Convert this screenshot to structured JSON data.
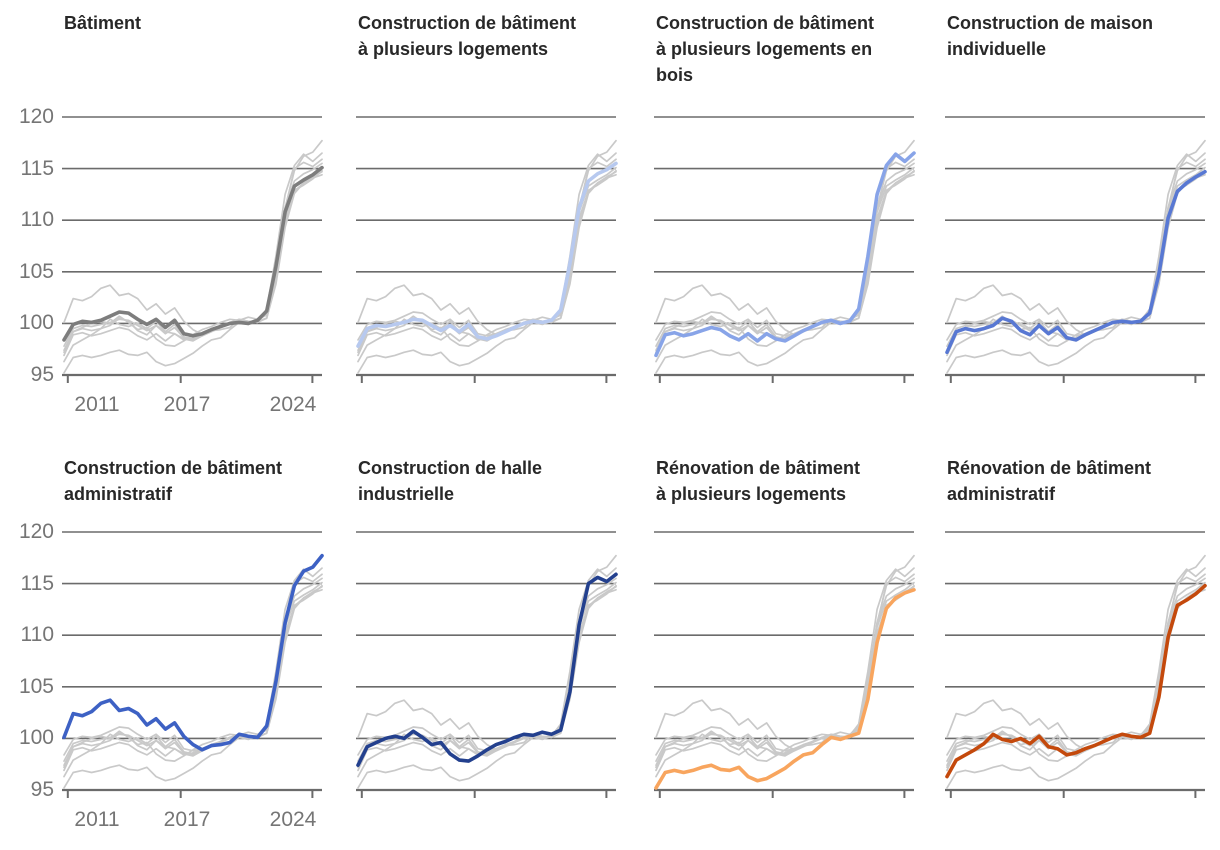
{
  "page": {
    "background": "#ffffff"
  },
  "axis": {
    "y_tick_labels": [
      "120",
      "115",
      "110",
      "105",
      "100",
      "95"
    ],
    "x_tick_labels": [
      "2011",
      "2017",
      "2024"
    ],
    "label_color": "#757575"
  },
  "chart_data": {
    "type": "line",
    "layout": "small-multiples-2x4",
    "grid": true,
    "grid_color": "#6b6b6b",
    "background_series_color": "#c9c9c9",
    "ylim": [
      95,
      120
    ],
    "y_ticks": [
      95,
      100,
      105,
      110,
      115,
      120
    ],
    "x_ticks": [
      2011,
      2017,
      2024
    ],
    "x": [
      2010.75,
      2011.25,
      2011.75,
      2012.25,
      2012.75,
      2013.25,
      2013.75,
      2014.25,
      2014.75,
      2015.25,
      2015.75,
      2016.25,
      2016.75,
      2017.25,
      2017.75,
      2018.25,
      2018.75,
      2019.25,
      2019.75,
      2020.25,
      2020.75,
      2021.25,
      2021.75,
      2022.25,
      2022.75,
      2023.25,
      2023.75,
      2024.25,
      2024.75
    ],
    "series": [
      {
        "name": "Bâtiment",
        "color": "#7d7d7d",
        "values": [
          98.4,
          99.9,
          100.2,
          100.1,
          100.3,
          100.7,
          101.1,
          101.0,
          100.4,
          99.9,
          100.4,
          99.6,
          100.3,
          99.0,
          98.8,
          99.0,
          99.4,
          99.7,
          100.0,
          100.1,
          100.0,
          100.3,
          101.2,
          105.5,
          110.8,
          113.3,
          113.9,
          114.4,
          115.1
        ]
      },
      {
        "name": "Construction de bâtiment à plusieurs logements",
        "color": "#b7c9ef",
        "values": [
          97.8,
          99.5,
          99.8,
          99.7,
          99.9,
          100.1,
          100.4,
          100.3,
          99.8,
          99.3,
          99.8,
          99.2,
          99.9,
          98.7,
          98.5,
          98.8,
          99.2,
          99.6,
          100.0,
          100.2,
          100.1,
          100.3,
          101.3,
          105.8,
          111.2,
          113.8,
          114.5,
          114.9,
          115.5
        ]
      },
      {
        "name": "Construction de bâtiment à plusieurs logements en bois",
        "color": "#88a4e8",
        "values": [
          96.9,
          98.9,
          99.1,
          98.8,
          99.0,
          99.3,
          99.6,
          99.4,
          98.8,
          98.4,
          99.0,
          98.3,
          99.0,
          98.5,
          98.3,
          98.8,
          99.3,
          99.7,
          100.1,
          100.3,
          100.0,
          100.2,
          101.4,
          106.5,
          112.5,
          115.3,
          116.4,
          115.7,
          116.5
        ]
      },
      {
        "name": "Construction de maison individuelle",
        "color": "#5878d3",
        "values": [
          97.2,
          99.2,
          99.5,
          99.3,
          99.5,
          99.8,
          100.5,
          100.2,
          99.3,
          98.9,
          99.8,
          99.0,
          99.6,
          98.6,
          98.4,
          98.9,
          99.3,
          99.7,
          100.1,
          100.2,
          100.1,
          100.2,
          101.0,
          104.8,
          110.2,
          112.8,
          113.6,
          114.2,
          114.7
        ]
      },
      {
        "name": "Construction de bâtiment administratif",
        "color": "#3d61c4",
        "values": [
          100.1,
          102.4,
          102.2,
          102.6,
          103.4,
          103.7,
          102.7,
          102.9,
          102.4,
          101.3,
          101.9,
          100.9,
          101.5,
          100.2,
          99.4,
          98.9,
          99.3,
          99.4,
          99.6,
          100.4,
          100.2,
          100.1,
          101.2,
          105.5,
          111.2,
          114.8,
          116.2,
          116.6,
          117.7
        ]
      },
      {
        "name": "Construction de halle industrielle",
        "color": "#23408e",
        "values": [
          97.4,
          99.2,
          99.6,
          100.0,
          100.2,
          100.0,
          100.7,
          100.1,
          99.4,
          99.6,
          98.5,
          97.9,
          97.8,
          98.3,
          98.9,
          99.4,
          99.7,
          100.1,
          100.4,
          100.3,
          100.6,
          100.4,
          100.8,
          104.5,
          111.0,
          115.0,
          115.6,
          115.2,
          115.9
        ]
      },
      {
        "name": "Rénovation de bâtiment à plusieurs logements",
        "color": "#f8a55e",
        "values": [
          95.2,
          96.7,
          96.9,
          96.7,
          96.9,
          97.2,
          97.4,
          97.0,
          96.9,
          97.2,
          96.3,
          95.9,
          96.1,
          96.6,
          97.1,
          97.8,
          98.4,
          98.6,
          99.4,
          100.1,
          99.9,
          100.2,
          100.5,
          103.8,
          109.3,
          112.6,
          113.6,
          114.1,
          114.4
        ]
      },
      {
        "name": "Rénovation de bâtiment administratif",
        "color": "#c4490c",
        "values": [
          96.3,
          97.9,
          98.4,
          98.9,
          99.5,
          100.4,
          99.9,
          99.7,
          100.0,
          99.5,
          100.2,
          99.2,
          99.0,
          98.4,
          98.6,
          99.0,
          99.3,
          99.7,
          100.1,
          100.4,
          100.2,
          100.1,
          100.5,
          104.0,
          109.8,
          112.9,
          113.4,
          114.0,
          114.8
        ]
      }
    ]
  }
}
